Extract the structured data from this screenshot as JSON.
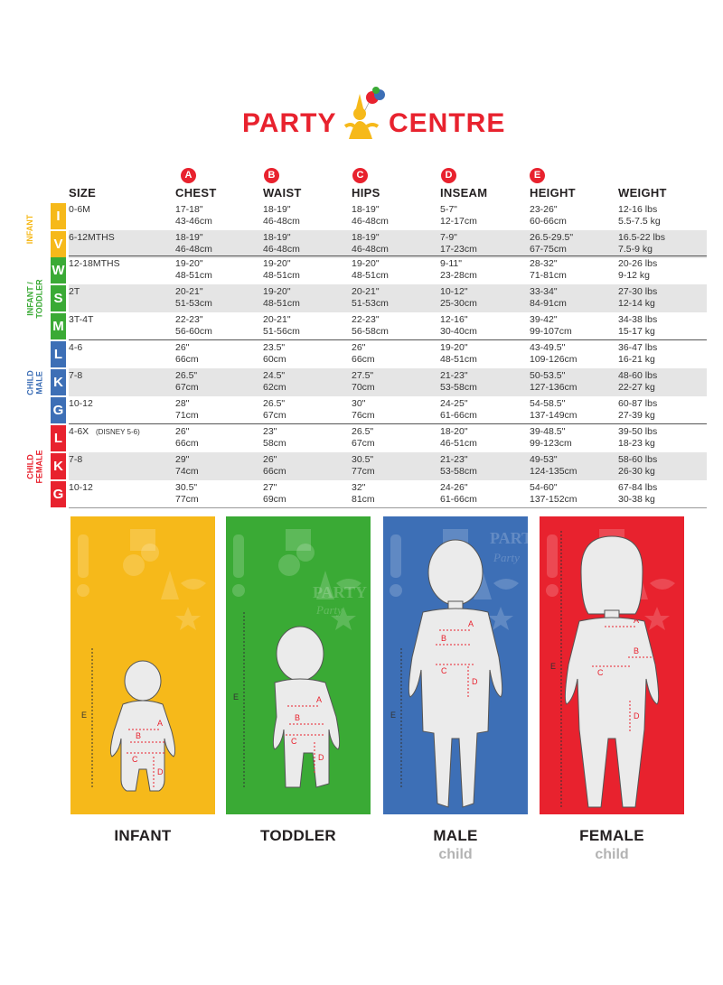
{
  "brand": {
    "left": "PARTY",
    "right": "CENTRE",
    "color": "#e8222e"
  },
  "columns": [
    {
      "key": "size",
      "label": "SIZE",
      "badge": ""
    },
    {
      "key": "chest",
      "label": "CHEST",
      "badge": "A"
    },
    {
      "key": "waist",
      "label": "WAIST",
      "badge": "B"
    },
    {
      "key": "hips",
      "label": "HIPS",
      "badge": "C"
    },
    {
      "key": "inseam",
      "label": "INSEAM",
      "badge": "D"
    },
    {
      "key": "height",
      "label": "HEIGHT",
      "badge": "E"
    },
    {
      "key": "weight",
      "label": "WEIGHT",
      "badge": ""
    }
  ],
  "groups": [
    {
      "label_line1": "INFANT",
      "label_line2": "",
      "color": "#f6b91a"
    },
    {
      "label_line1": "INFANT /",
      "label_line2": "TODDLER",
      "color": "#3aaa35"
    },
    {
      "label_line1": "CHILD",
      "label_line2": "MALE",
      "color": "#3d6fb6"
    },
    {
      "label_line1": "CHILD",
      "label_line2": "FEMALE",
      "color": "#e8222e"
    }
  ],
  "rows": [
    {
      "code": "I",
      "size": "0-6M",
      "size_extra": "",
      "chest": [
        "17-18\"",
        "43-46cm"
      ],
      "waist": [
        "18-19\"",
        "46-48cm"
      ],
      "hips": [
        "18-19\"",
        "46-48cm"
      ],
      "inseam": [
        "5-7\"",
        "12-17cm"
      ],
      "height": [
        "23-26\"",
        "60-66cm"
      ],
      "weight": [
        "12-16 lbs",
        "5.5-7.5 kg"
      ]
    },
    {
      "code": "V",
      "size": "6-12MTHS",
      "size_extra": "",
      "chest": [
        "18-19\"",
        "46-48cm"
      ],
      "waist": [
        "18-19\"",
        "46-48cm"
      ],
      "hips": [
        "18-19\"",
        "46-48cm"
      ],
      "inseam": [
        "7-9\"",
        "17-23cm"
      ],
      "height": [
        "26.5-29.5\"",
        "67-75cm"
      ],
      "weight": [
        "16.5-22 lbs",
        "7.5-9 kg"
      ]
    },
    {
      "code": "W",
      "size": "12-18MTHS",
      "size_extra": "",
      "chest": [
        "19-20\"",
        "48-51cm"
      ],
      "waist": [
        "19-20\"",
        "48-51cm"
      ],
      "hips": [
        "19-20\"",
        "48-51cm"
      ],
      "inseam": [
        "9-11\"",
        "23-28cm"
      ],
      "height": [
        "28-32\"",
        "71-81cm"
      ],
      "weight": [
        "20-26 lbs",
        "9-12 kg"
      ]
    },
    {
      "code": "S",
      "size": "2T",
      "size_extra": "",
      "chest": [
        "20-21\"",
        "51-53cm"
      ],
      "waist": [
        "19-20\"",
        "48-51cm"
      ],
      "hips": [
        "20-21\"",
        "51-53cm"
      ],
      "inseam": [
        "10-12\"",
        "25-30cm"
      ],
      "height": [
        "33-34\"",
        "84-91cm"
      ],
      "weight": [
        "27-30 lbs",
        "12-14 kg"
      ]
    },
    {
      "code": "M",
      "size": "3T-4T",
      "size_extra": "",
      "chest": [
        "22-23\"",
        "56-60cm"
      ],
      "waist": [
        "20-21\"",
        "51-56cm"
      ],
      "hips": [
        "22-23\"",
        "56-58cm"
      ],
      "inseam": [
        "12-16\"",
        "30-40cm"
      ],
      "height": [
        "39-42\"",
        "99-107cm"
      ],
      "weight": [
        "34-38 lbs",
        "15-17 kg"
      ]
    },
    {
      "code": "L",
      "size": "4-6",
      "size_extra": "",
      "chest": [
        "26\"",
        "66cm"
      ],
      "waist": [
        "23.5\"",
        "60cm"
      ],
      "hips": [
        "26\"",
        "66cm"
      ],
      "inseam": [
        "19-20\"",
        "48-51cm"
      ],
      "height": [
        "43-49.5\"",
        "109-126cm"
      ],
      "weight": [
        "36-47 lbs",
        "16-21 kg"
      ]
    },
    {
      "code": "K",
      "size": "7-8",
      "size_extra": "",
      "chest": [
        "26.5\"",
        "67cm"
      ],
      "waist": [
        "24.5\"",
        "62cm"
      ],
      "hips": [
        "27.5\"",
        "70cm"
      ],
      "inseam": [
        "21-23\"",
        "53-58cm"
      ],
      "height": [
        "50-53.5\"",
        "127-136cm"
      ],
      "weight": [
        "48-60 lbs",
        "22-27 kg"
      ]
    },
    {
      "code": "G",
      "size": "10-12",
      "size_extra": "",
      "chest": [
        "28\"",
        "71cm"
      ],
      "waist": [
        "26.5\"",
        "67cm"
      ],
      "hips": [
        "30\"",
        "76cm"
      ],
      "inseam": [
        "24-25\"",
        "61-66cm"
      ],
      "height": [
        "54-58.5\"",
        "137-149cm"
      ],
      "weight": [
        "60-87 lbs",
        "27-39 kg"
      ]
    },
    {
      "code": "L",
      "size": "4-6X",
      "size_extra": "(DISNEY 5-6)",
      "chest": [
        "26\"",
        "66cm"
      ],
      "waist": [
        "23\"",
        "58cm"
      ],
      "hips": [
        "26.5\"",
        "67cm"
      ],
      "inseam": [
        "18-20\"",
        "46-51cm"
      ],
      "height": [
        "39-48.5\"",
        "99-123cm"
      ],
      "weight": [
        "39-50 lbs",
        "18-23 kg"
      ]
    },
    {
      "code": "K",
      "size": "7-8",
      "size_extra": "",
      "chest": [
        "29\"",
        "74cm"
      ],
      "waist": [
        "26\"",
        "66cm"
      ],
      "hips": [
        "30.5\"",
        "77cm"
      ],
      "inseam": [
        "21-23\"",
        "53-58cm"
      ],
      "height": [
        "49-53\"",
        "124-135cm"
      ],
      "weight": [
        "58-60 lbs",
        "26-30 kg"
      ]
    },
    {
      "code": "G",
      "size": "10-12",
      "size_extra": "",
      "chest": [
        "30.5\"",
        "77cm"
      ],
      "waist": [
        "27\"",
        "69cm"
      ],
      "hips": [
        "32\"",
        "81cm"
      ],
      "inseam": [
        "24-26\"",
        "61-66cm"
      ],
      "height": [
        "54-60\"",
        "137-152cm"
      ],
      "weight": [
        "67-84 lbs",
        "30-38 kg"
      ]
    }
  ],
  "figures": [
    {
      "label": "INFANT",
      "sub": "",
      "color": "#f6b91a"
    },
    {
      "label": "TODDLER",
      "sub": "",
      "color": "#3aaa35"
    },
    {
      "label": "MALE",
      "sub": "child",
      "color": "#3d6fb6"
    },
    {
      "label": "FEMALE",
      "sub": "child",
      "color": "#e8222e"
    }
  ],
  "markers": {
    "a": "A",
    "b": "B",
    "c": "C",
    "d": "D",
    "e": "E"
  },
  "panel_texts": {
    "party_upper": "PARTY",
    "party_lower": "Party"
  },
  "icons": [
    "balloon-icon",
    "mascot-icon",
    "gift-icon",
    "party-hat-icon",
    "mask-icon",
    "star-icon",
    "cake-icon",
    "exclamation-icon"
  ]
}
